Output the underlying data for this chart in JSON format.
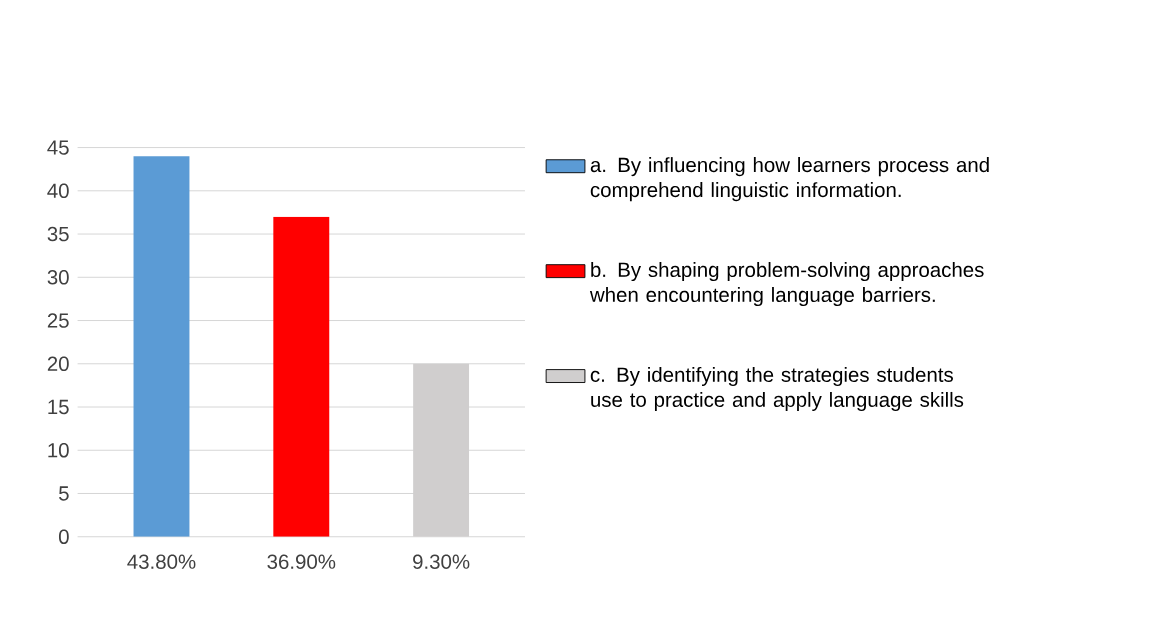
{
  "chart_data": {
    "type": "bar",
    "categories": [
      "43.80%",
      "36.90%",
      "9.30%"
    ],
    "series": [
      {
        "name": "a. By influencing how learners process and comprehend linguistic information.",
        "color": "#5b9bd5",
        "values": [
          44,
          null,
          null
        ]
      },
      {
        "name": "b. By shaping problem-solving approaches when encountering language barriers.",
        "color": "#ff0000",
        "values": [
          null,
          37,
          null
        ]
      },
      {
        "name": "c. By identifying the strategies students use to practice and apply language skills",
        "color": "#d0cece",
        "values": [
          null,
          null,
          20
        ]
      }
    ],
    "ylim": [
      0,
      45
    ],
    "yticks": [
      0,
      5,
      10,
      15,
      20,
      25,
      30,
      35,
      40,
      45
    ],
    "grid": "y",
    "legend": "right"
  }
}
